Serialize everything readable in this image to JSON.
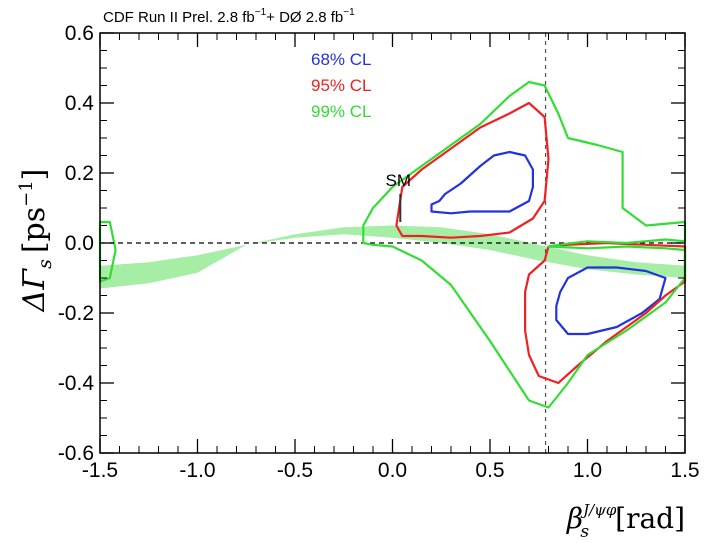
{
  "chart_data": {
    "type": "contour",
    "title_parts": {
      "lead": "CDF  Run II Prel. 2.8 fb",
      "sup1": "−1",
      "mid": "+ DØ  2.8 fb",
      "sup2": "−1"
    },
    "xlabel": {
      "main": "β",
      "sub": "s",
      "sup": "J/ψφ",
      "unit": "[rad]"
    },
    "ylabel": {
      "main": "ΔΓ",
      "sub": "s",
      "unit_pre": "[ps",
      "unit_sup": "−1",
      "unit_post": "]"
    },
    "xlim": [
      -1.5,
      1.5
    ],
    "ylim": [
      -0.6,
      0.6
    ],
    "x_ticks": [
      -1.5,
      -1.0,
      -0.5,
      0.0,
      0.5,
      1.0,
      1.5
    ],
    "x_tick_labels": [
      "-1.5",
      "-1.0",
      "-0.5",
      "0.0",
      "0.5",
      "1.0",
      "1.5"
    ],
    "y_ticks": [
      -0.6,
      -0.4,
      -0.2,
      0.0,
      0.2,
      0.4,
      0.6
    ],
    "y_tick_labels": [
      "-0.6",
      "-0.4",
      "-0.2",
      "0.0",
      "0.2",
      "0.4",
      "0.6"
    ],
    "grid": false,
    "legend_position": "top-center",
    "legend": [
      {
        "label": "68% CL",
        "color": "#2233dd"
      },
      {
        "label": "95% CL",
        "color": "#ee2222"
      },
      {
        "label": "99% CL",
        "color": "#33dd33"
      }
    ],
    "reference_lines": {
      "vertical_x": 0.785,
      "horizontal_y": 0.0
    },
    "sm_marker": {
      "label": "SM",
      "x": 0.04,
      "y_low": 0.06,
      "y_high": 0.14
    },
    "band": {
      "color": "#a6eea6",
      "x": [
        -1.5,
        -1.25,
        -1.0,
        -0.75,
        -0.5,
        -0.25,
        0.0,
        0.25,
        0.5,
        0.75,
        1.0,
        1.25,
        1.5
      ],
      "upper": [
        -0.065,
        -0.055,
        -0.035,
        -0.005,
        0.025,
        0.045,
        0.05,
        0.045,
        0.025,
        -0.005,
        -0.035,
        -0.055,
        -0.065
      ],
      "lower": [
        -0.13,
        -0.115,
        -0.085,
        -0.005,
        0.015,
        0.025,
        0.015,
        0.0,
        -0.02,
        -0.05,
        -0.075,
        -0.09,
        -0.1
      ]
    },
    "contours": [
      {
        "level": "68% CL",
        "color": "#2233dd",
        "points": [
          [
            0.24,
            0.12
          ],
          [
            0.27,
            0.14
          ],
          [
            0.35,
            0.17
          ],
          [
            0.45,
            0.22
          ],
          [
            0.52,
            0.25
          ],
          [
            0.6,
            0.26
          ],
          [
            0.68,
            0.25
          ],
          [
            0.72,
            0.21
          ],
          [
            0.72,
            0.16
          ],
          [
            0.7,
            0.12
          ],
          [
            0.6,
            0.09
          ],
          [
            0.5,
            0.09
          ],
          [
            0.4,
            0.09
          ],
          [
            0.3,
            0.085
          ],
          [
            0.2,
            0.09
          ],
          [
            0.2,
            0.11
          ]
        ]
      },
      {
        "level": "68% CL",
        "color": "#2233dd",
        "points": [
          [
            0.86,
            -0.14
          ],
          [
            0.9,
            -0.1
          ],
          [
            1.0,
            -0.07
          ],
          [
            1.15,
            -0.07
          ],
          [
            1.3,
            -0.08
          ],
          [
            1.4,
            -0.1
          ],
          [
            1.37,
            -0.16
          ],
          [
            1.28,
            -0.2
          ],
          [
            1.15,
            -0.24
          ],
          [
            1.0,
            -0.26
          ],
          [
            0.9,
            -0.26
          ],
          [
            0.84,
            -0.22
          ],
          [
            0.84,
            -0.18
          ]
        ]
      },
      {
        "level": "95% CL",
        "color": "#ee2222",
        "points": [
          [
            0.02,
            0.05
          ],
          [
            0.05,
            0.16
          ],
          [
            0.15,
            0.21
          ],
          [
            0.3,
            0.27
          ],
          [
            0.45,
            0.33
          ],
          [
            0.6,
            0.37
          ],
          [
            0.7,
            0.4
          ],
          [
            0.78,
            0.36
          ],
          [
            0.8,
            0.24
          ],
          [
            0.78,
            0.12
          ],
          [
            0.72,
            0.07
          ],
          [
            0.6,
            0.03
          ],
          [
            0.45,
            0.02
          ],
          [
            0.3,
            0.015
          ],
          [
            0.15,
            0.02
          ],
          [
            0.05,
            0.02
          ]
        ]
      },
      {
        "level": "95% CL",
        "color": "#ee2222",
        "points": [
          [
            0.8,
            -0.01
          ],
          [
            0.9,
            -0.005
          ],
          [
            1.1,
            0.0
          ],
          [
            1.3,
            -0.005
          ],
          [
            1.5,
            -0.01
          ],
          [
            1.5,
            -0.11
          ],
          [
            1.4,
            -0.15
          ],
          [
            1.3,
            -0.2
          ],
          [
            1.1,
            -0.28
          ],
          [
            0.95,
            -0.35
          ],
          [
            0.85,
            -0.4
          ],
          [
            0.75,
            -0.38
          ],
          [
            0.7,
            -0.32
          ],
          [
            0.68,
            -0.25
          ],
          [
            0.68,
            -0.14
          ],
          [
            0.7,
            -0.09
          ],
          [
            0.78,
            -0.05
          ]
        ]
      },
      {
        "level": "99% CL",
        "color": "#33dd33",
        "points": [
          [
            -0.15,
            0.0
          ],
          [
            -0.15,
            0.05
          ],
          [
            -0.1,
            0.1
          ],
          [
            0.0,
            0.16
          ],
          [
            0.15,
            0.22
          ],
          [
            0.3,
            0.28
          ],
          [
            0.45,
            0.34
          ],
          [
            0.6,
            0.42
          ],
          [
            0.7,
            0.46
          ],
          [
            0.78,
            0.45
          ],
          [
            0.85,
            0.37
          ],
          [
            0.9,
            0.3
          ],
          [
            1.05,
            0.28
          ],
          [
            1.18,
            0.26
          ],
          [
            1.18,
            0.1
          ],
          [
            1.3,
            0.05
          ],
          [
            1.5,
            0.06
          ],
          [
            1.5,
            0.005
          ],
          [
            1.4,
            0.01
          ],
          [
            1.2,
            0.0
          ],
          [
            1.0,
            0.005
          ],
          [
            0.85,
            -0.005
          ],
          [
            0.8,
            -0.01
          ],
          [
            1.0,
            -0.015
          ],
          [
            1.2,
            -0.01
          ],
          [
            1.4,
            -0.015
          ],
          [
            1.5,
            -0.02
          ],
          [
            1.5,
            -0.1
          ],
          [
            1.4,
            -0.17
          ],
          [
            1.2,
            -0.25
          ],
          [
            1.0,
            -0.32
          ],
          [
            0.9,
            -0.4
          ],
          [
            0.8,
            -0.47
          ],
          [
            0.7,
            -0.45
          ],
          [
            0.5,
            -0.28
          ],
          [
            0.3,
            -0.12
          ],
          [
            0.15,
            -0.05
          ],
          [
            0.0,
            -0.01
          ],
          [
            -0.1,
            -0.005
          ]
        ]
      },
      {
        "level": "99% CL",
        "color": "#33dd33",
        "points": [
          [
            -1.5,
            0.06
          ],
          [
            -1.45,
            0.06
          ],
          [
            -1.42,
            -0.02
          ],
          [
            -1.45,
            -0.1
          ],
          [
            -1.5,
            -0.11
          ]
        ]
      }
    ]
  }
}
